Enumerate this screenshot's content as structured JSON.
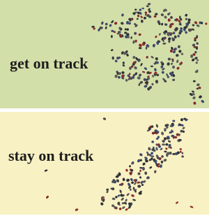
{
  "panels": [
    {
      "text": "get on track"
    },
    {
      "text": "stay on track"
    }
  ]
}
